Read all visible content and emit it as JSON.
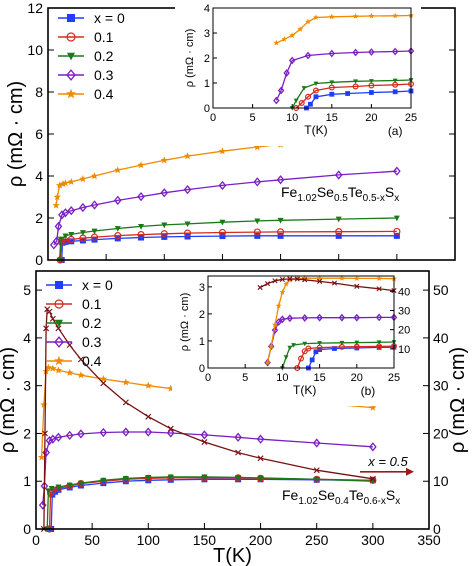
{
  "chart_data": [
    {
      "type": "line",
      "panel": "top-main",
      "xlim": [
        0,
        350
      ],
      "ylim": [
        0,
        12
      ],
      "xticks": [],
      "yticks": [
        0,
        2,
        4,
        6,
        8,
        10,
        12
      ],
      "ylabel": "ρ (mΩ · cm)",
      "annotation": {
        "pre": "Fe",
        "s1": "1.02",
        "m1": "Se",
        "s2": "0.5",
        "m2": "Te",
        "s3": "0.5-x",
        "m3": "S",
        "s4": "x"
      },
      "legend_position": "top-left",
      "series": [
        {
          "name": "x = 0",
          "color": "#1f3cff",
          "marker": "square",
          "x": [
            11.8,
            12.5,
            15,
            20,
            30,
            40,
            60,
            80,
            100,
            120,
            150,
            180,
            200,
            250,
            300
          ],
          "y": [
            0,
            0.82,
            0.86,
            0.89,
            0.93,
            0.97,
            1.03,
            1.07,
            1.1,
            1.12,
            1.14,
            1.15,
            1.15,
            1.15,
            1.15
          ]
        },
        {
          "name": "0.1",
          "color": "#d62a1e",
          "marker": "circle",
          "x": [
            10.5,
            11.5,
            15,
            20,
            30,
            40,
            60,
            80,
            100,
            120,
            150,
            180,
            200,
            250,
            300
          ],
          "y": [
            0,
            0.85,
            0.92,
            0.98,
            1.04,
            1.09,
            1.16,
            1.21,
            1.25,
            1.28,
            1.31,
            1.33,
            1.34,
            1.35,
            1.36
          ]
        },
        {
          "name": "0.2",
          "color": "#1a7a1a",
          "marker": "triangle-down",
          "x": [
            10,
            11,
            15,
            20,
            30,
            40,
            60,
            80,
            100,
            120,
            150,
            180,
            200,
            250,
            300
          ],
          "y": [
            0,
            1.0,
            1.15,
            1.22,
            1.31,
            1.38,
            1.5,
            1.6,
            1.67,
            1.72,
            1.8,
            1.86,
            1.89,
            1.95,
            2.0
          ]
        },
        {
          "name": "0.3",
          "color": "#7b1fc4",
          "marker": "diamond",
          "x": [
            5,
            7.5,
            9,
            12,
            15,
            20,
            30,
            40,
            60,
            80,
            100,
            120,
            150,
            180,
            200,
            250,
            300
          ],
          "y": [
            0.72,
            0.9,
            1.6,
            2.15,
            2.25,
            2.35,
            2.5,
            2.62,
            2.84,
            3.02,
            3.2,
            3.35,
            3.55,
            3.72,
            3.82,
            4.05,
            4.23
          ]
        },
        {
          "name": "0.4",
          "color": "#f08a00",
          "marker": "star",
          "x": [
            7,
            8,
            10,
            13,
            15,
            20,
            30,
            40,
            60,
            80,
            100,
            120,
            150,
            180,
            200,
            250,
            300
          ],
          "y": [
            2.6,
            3.0,
            3.55,
            3.62,
            3.66,
            3.72,
            3.86,
            4.0,
            4.28,
            4.52,
            4.75,
            4.95,
            5.18,
            5.38,
            5.5,
            5.74,
            5.96
          ]
        }
      ]
    },
    {
      "type": "line",
      "panel": "top-inset",
      "label": "(a)",
      "xlim": [
        0,
        25
      ],
      "ylim": [
        0,
        4
      ],
      "xticks": [
        0,
        5,
        10,
        15,
        20,
        25
      ],
      "yticks": [
        0,
        1,
        2,
        3,
        4
      ],
      "xlabel": "T(K)",
      "ylabel": "ρ (mΩ · cm)",
      "series": [
        {
          "name": "x = 0",
          "color": "#1f3cff",
          "marker": "square",
          "x": [
            11.8,
            12.3,
            13,
            15,
            17,
            20,
            23,
            25
          ],
          "y": [
            0,
            0.15,
            0.45,
            0.55,
            0.58,
            0.62,
            0.65,
            0.68
          ]
        },
        {
          "name": "0.1",
          "color": "#d62a1e",
          "marker": "circle",
          "x": [
            10.5,
            11.2,
            12,
            13,
            15,
            18,
            20,
            23,
            25
          ],
          "y": [
            0,
            0.2,
            0.45,
            0.7,
            0.82,
            0.86,
            0.9,
            0.93,
            0.96
          ]
        },
        {
          "name": "0.2",
          "color": "#1a7a1a",
          "marker": "triangle-down",
          "x": [
            10,
            10.5,
            11.5,
            13,
            15,
            18,
            20,
            23,
            25
          ],
          "y": [
            0,
            0.3,
            0.8,
            0.98,
            1.03,
            1.07,
            1.08,
            1.1,
            1.12
          ]
        },
        {
          "name": "0.3",
          "color": "#7b1fc4",
          "marker": "diamond",
          "x": [
            8,
            8.6,
            9.3,
            10,
            12,
            15,
            18,
            20,
            23,
            25
          ],
          "y": [
            0.3,
            0.7,
            1.4,
            1.9,
            2.1,
            2.18,
            2.22,
            2.24,
            2.26,
            2.28
          ]
        },
        {
          "name": "0.4",
          "color": "#f08a00",
          "marker": "star",
          "x": [
            8,
            9,
            10,
            11,
            12,
            13,
            15,
            18,
            20,
            23,
            25
          ],
          "y": [
            2.6,
            2.75,
            2.9,
            3.15,
            3.45,
            3.62,
            3.65,
            3.67,
            3.68,
            3.69,
            3.7
          ]
        }
      ]
    },
    {
      "type": "line",
      "panel": "bottom-main",
      "xlim": [
        0,
        350
      ],
      "ylim": [
        0,
        5.4
      ],
      "y2lim": [
        0,
        54
      ],
      "xticks": [
        0,
        50,
        100,
        150,
        200,
        250,
        300,
        350
      ],
      "yticks": [
        0,
        1,
        2,
        3,
        4,
        5
      ],
      "y2ticks": [
        0,
        10,
        20,
        30,
        40,
        50
      ],
      "xlabel": "T(K)",
      "ylabel": "ρ (mΩ · cm)",
      "y2label": "ρ (mΩ · cm)",
      "annotation": {
        "pre": "Fe",
        "s1": "1.02",
        "m1": "Se",
        "s2": "0.4",
        "m2": "Te",
        "s3": "0.6-x",
        "m3": "S",
        "s4": "x"
      },
      "x05_label": "x = 0.5",
      "legend_position": "top-left",
      "series": [
        {
          "name": "x = 0",
          "color": "#1f3cff",
          "marker": "square",
          "x": [
            13.5,
            14.5,
            17,
            20,
            30,
            40,
            60,
            80,
            100,
            120,
            150,
            180,
            200,
            250,
            300
          ],
          "y": [
            0,
            0.72,
            0.78,
            0.82,
            0.87,
            0.91,
            0.96,
            1.0,
            1.02,
            1.03,
            1.04,
            1.04,
            1.04,
            1.03,
            1.02
          ]
        },
        {
          "name": "0.1",
          "color": "#d62a1e",
          "marker": "circle",
          "x": [
            12,
            13,
            15,
            20,
            30,
            40,
            60,
            80,
            100,
            120,
            150,
            180,
            200,
            250,
            300
          ],
          "y": [
            0,
            0.75,
            0.8,
            0.85,
            0.9,
            0.95,
            1.0,
            1.04,
            1.06,
            1.07,
            1.07,
            1.07,
            1.06,
            1.04,
            1.02
          ]
        },
        {
          "name": "0.2",
          "color": "#1a7a1a",
          "marker": "triangle-down",
          "x": [
            10,
            11,
            14,
            20,
            30,
            40,
            60,
            80,
            100,
            120,
            150,
            180,
            200,
            250,
            300
          ],
          "y": [
            0,
            0.8,
            0.85,
            0.88,
            0.92,
            0.96,
            1.02,
            1.06,
            1.08,
            1.09,
            1.09,
            1.08,
            1.07,
            1.04,
            1.0
          ]
        },
        {
          "name": "0.3",
          "color": "#7b1fc4",
          "marker": "diamond",
          "x": [
            6,
            7.5,
            9,
            12,
            15,
            20,
            30,
            40,
            60,
            80,
            100,
            120,
            150,
            180,
            200,
            250,
            300
          ],
          "y": [
            0.5,
            0.9,
            1.6,
            1.85,
            1.88,
            1.92,
            1.96,
            1.99,
            2.02,
            2.03,
            2.03,
            2.01,
            1.97,
            1.92,
            1.88,
            1.8,
            1.72
          ]
        },
        {
          "name": "0.4",
          "color": "#f08a00",
          "marker": "star",
          "x": [
            5,
            7,
            9,
            11,
            15,
            20,
            30,
            40,
            60,
            80,
            100,
            120,
            150,
            180,
            200,
            250,
            300
          ],
          "y": [
            1.5,
            2.6,
            3.3,
            3.38,
            3.36,
            3.32,
            3.27,
            3.22,
            3.14,
            3.07,
            3.0,
            2.94,
            2.87,
            2.8,
            2.76,
            2.64,
            2.54
          ]
        },
        {
          "name": "x = 0.5",
          "color": "#7a1010",
          "marker": "x",
          "axis": "right",
          "x": [
            7,
            8,
            9,
            10,
            12,
            15,
            20,
            30,
            40,
            60,
            80,
            100,
            120,
            150,
            180,
            200,
            250,
            300
          ],
          "y": [
            0,
            20,
            42,
            46,
            45.5,
            44,
            42,
            38.5,
            35.5,
            30.5,
            26.5,
            23.5,
            21,
            18.2,
            16,
            14.8,
            12.3,
            10.5
          ]
        }
      ]
    },
    {
      "type": "line",
      "panel": "bottom-inset",
      "label": "(b)",
      "xlim": [
        0,
        25
      ],
      "ylim": [
        0,
        3.4
      ],
      "y2lim": [
        0,
        48
      ],
      "xticks": [
        0,
        5,
        10,
        15,
        20,
        25
      ],
      "yticks": [
        0,
        1,
        2,
        3
      ],
      "y2ticks": [
        10,
        20,
        30,
        40
      ],
      "xlabel": "T(K)",
      "ylabel": "ρ (mΩ · cm)",
      "series": [
        {
          "name": "x = 0",
          "color": "#1f3cff",
          "marker": "square",
          "x": [
            13.5,
            14,
            14.5,
            15,
            17,
            20,
            23,
            25
          ],
          "y": [
            0,
            0.3,
            0.6,
            0.68,
            0.72,
            0.74,
            0.76,
            0.77
          ]
        },
        {
          "name": "0.1",
          "color": "#d62a1e",
          "marker": "circle",
          "x": [
            12,
            12.5,
            13,
            13.5,
            15,
            18,
            20,
            23,
            25
          ],
          "y": [
            0,
            0.35,
            0.62,
            0.72,
            0.75,
            0.78,
            0.79,
            0.8,
            0.81
          ]
        },
        {
          "name": "0.2",
          "color": "#1a7a1a",
          "marker": "triangle-down",
          "x": [
            10,
            10.5,
            11,
            11.5,
            13,
            15,
            18,
            20,
            23,
            25
          ],
          "y": [
            0,
            0.4,
            0.75,
            0.85,
            0.9,
            0.92,
            0.93,
            0.94,
            0.95,
            0.96
          ]
        },
        {
          "name": "0.3",
          "color": "#7b1fc4",
          "marker": "diamond",
          "x": [
            8,
            8.5,
            9,
            9.5,
            10,
            11,
            13,
            15,
            18,
            20,
            23,
            25
          ],
          "y": [
            0.2,
            0.8,
            1.4,
            1.7,
            1.8,
            1.84,
            1.85,
            1.86,
            1.86,
            1.86,
            1.87,
            1.87
          ]
        },
        {
          "name": "0.4",
          "color": "#f08a00",
          "marker": "star",
          "x": [
            8,
            8.5,
            9,
            9.5,
            10,
            10.5,
            11,
            12,
            13,
            15,
            18,
            20,
            23,
            25
          ],
          "y": [
            0.2,
            0.8,
            1.6,
            2.3,
            2.8,
            3.1,
            3.25,
            3.3,
            3.32,
            3.32,
            3.32,
            3.31,
            3.31,
            3.3
          ]
        },
        {
          "name": "x = 0.5",
          "color": "#7a1010",
          "marker": "x",
          "axis": "right",
          "x": [
            7,
            8,
            9,
            10,
            11,
            12,
            13,
            15,
            17,
            20,
            23,
            25
          ],
          "y": [
            42,
            44,
            45.5,
            46.2,
            46.5,
            46.4,
            46,
            45.2,
            44.3,
            42.6,
            41.3,
            40.4
          ]
        }
      ]
    }
  ]
}
